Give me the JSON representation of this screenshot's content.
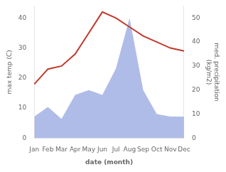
{
  "chart_data": {
    "type": "line",
    "categories": [
      "Jan",
      "Feb",
      "Mar",
      "Apr",
      "May",
      "Jun",
      "Jul",
      "Aug",
      "Sep",
      "Oct",
      "Nov",
      "Dec"
    ],
    "series": [
      {
        "type": "line",
        "color": "#c0392b",
        "values": [
          18,
          23,
          24,
          28,
          35,
          42,
          40,
          37,
          34,
          32,
          30,
          29
        ]
      },
      {
        "type": "area",
        "color": "#b0bce8",
        "axis": "y2",
        "values": [
          9,
          13,
          8,
          18,
          20,
          18,
          29,
          50,
          20,
          10,
          9,
          9
        ]
      }
    ],
    "xlabel": "date (month)",
    "ylabel": "max temp (C)",
    "y2label": "med. precipitation\n(kg/m2)",
    "ylim": [
      0,
      44
    ],
    "yticks": [
      0,
      10,
      20,
      30,
      40
    ],
    "y2lim": [
      0,
      55
    ],
    "y2ticks": [
      0,
      10,
      20,
      30,
      40,
      50
    ],
    "grid": false
  }
}
